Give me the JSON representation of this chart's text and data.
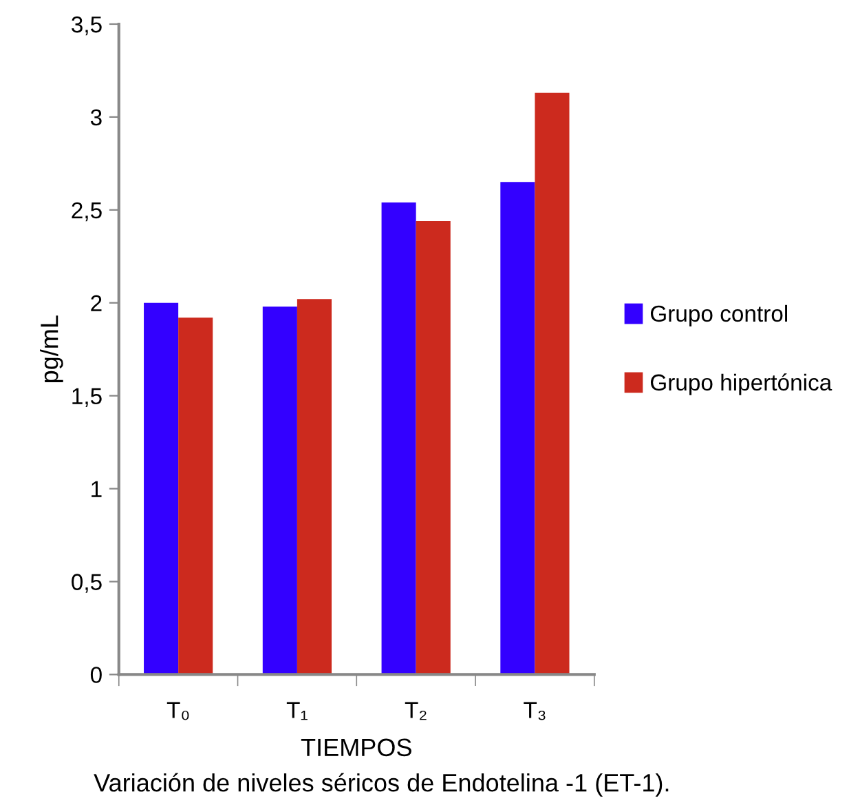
{
  "chart_data": {
    "type": "bar",
    "categories": [
      "T₀",
      "T₁",
      "T₂",
      "T₃"
    ],
    "series": [
      {
        "name": "Grupo control",
        "color": "#3300ff",
        "values": [
          2.0,
          1.98,
          2.54,
          2.65
        ]
      },
      {
        "name": "Grupo hipertónica",
        "color": "#cc2a1e",
        "values": [
          1.92,
          2.02,
          2.44,
          3.13
        ]
      }
    ],
    "xlabel": "TIEMPOS",
    "ylabel": "pg/mL",
    "ylim": [
      0,
      3.5
    ],
    "yticks": [
      {
        "value": 0,
        "label": "0"
      },
      {
        "value": 0.5,
        "label": "0,5"
      },
      {
        "value": 1,
        "label": "1"
      },
      {
        "value": 1.5,
        "label": "1,5"
      },
      {
        "value": 2,
        "label": "2"
      },
      {
        "value": 2.5,
        "label": "2,5"
      },
      {
        "value": 3,
        "label": "3"
      },
      {
        "value": 3.5,
        "label": "3,5"
      }
    ],
    "annotations": [
      "Variación de niveles séricos de Endotelina -1 (ET-1)."
    ],
    "legend": "right",
    "grid": false
  }
}
